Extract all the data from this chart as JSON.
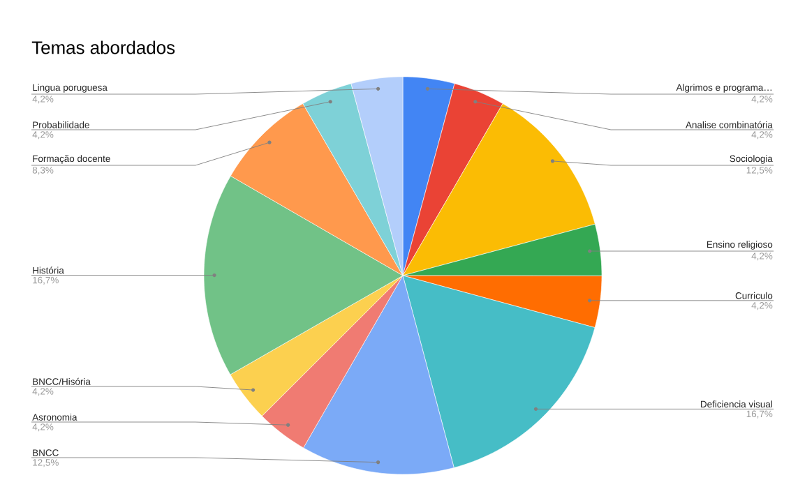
{
  "chart_data": {
    "type": "pie",
    "title": "Temas abordados",
    "categories": [
      "Algrimos e programa…",
      "Analise combinatória",
      "Sociologia",
      "Ensino religioso",
      "Curriculo",
      "Deficiencia visual",
      "BNCC",
      "Asronomia",
      "BNCC/Hisória",
      "História",
      "Formação docente",
      "Probabilidade",
      "Lingua poruguesa"
    ],
    "values": [
      4.2,
      4.2,
      12.5,
      4.2,
      4.2,
      16.7,
      12.5,
      4.2,
      4.2,
      16.7,
      8.3,
      4.2,
      4.2
    ],
    "value_labels": [
      "4,2%",
      "4,2%",
      "12,5%",
      "4,2%",
      "4,2%",
      "16,7%",
      "12,5%",
      "4,2%",
      "4,2%",
      "16,7%",
      "8,3%",
      "4,2%",
      "4,2%"
    ],
    "colors": [
      "#4285f4",
      "#ea4335",
      "#fbbc04",
      "#34a853",
      "#ff6d01",
      "#46bdc6",
      "#7baaf7",
      "#f07b72",
      "#fcd04f",
      "#71c287",
      "#ff994d",
      "#7ed1d7",
      "#b3cefb"
    ]
  }
}
